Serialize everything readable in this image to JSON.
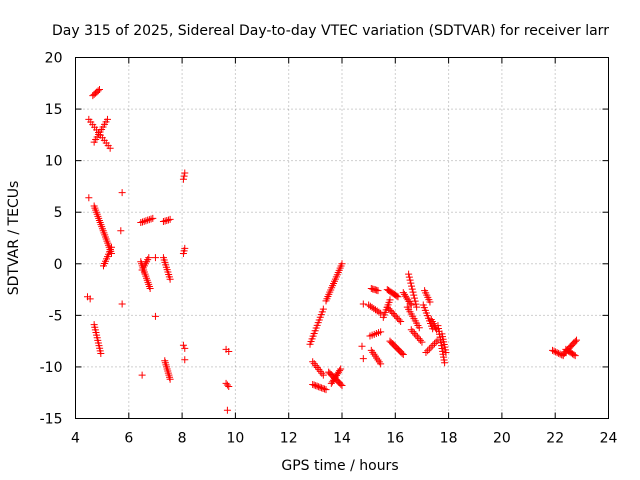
{
  "chart_data": {
    "type": "scatter",
    "title": "Day 315 of 2025, Sidereal Day-to-day VTEC variation (SDTVAR) for receiver larr",
    "xlabel": "GPS time / hours",
    "ylabel": "SDTVAR / TECUs",
    "xlim": [
      4,
      24
    ],
    "ylim": [
      -15,
      20
    ],
    "xticks": [
      4,
      6,
      8,
      10,
      12,
      14,
      16,
      18,
      20,
      22,
      24
    ],
    "yticks": [
      -15,
      -10,
      -5,
      0,
      5,
      10,
      15,
      20
    ],
    "grid": true,
    "marker": "+",
    "color": "#ff0000",
    "segments": [
      {
        "x0": 4.65,
        "y0": 16.3,
        "x1": 4.9,
        "y1": 16.9,
        "n": 6
      },
      {
        "x0": 4.5,
        "y0": 14.0,
        "x1": 5.3,
        "y1": 11.2,
        "n": 12
      },
      {
        "x0": 4.7,
        "y0": 11.8,
        "x1": 5.2,
        "y1": 14.0,
        "n": 10
      },
      {
        "x0": 4.5,
        "y0": 6.4,
        "x1": 4.5,
        "y1": 6.4,
        "n": 1
      },
      {
        "x0": 4.7,
        "y0": 5.6,
        "x1": 5.35,
        "y1": 1.0,
        "n": 24
      },
      {
        "x0": 5.05,
        "y0": -0.2,
        "x1": 5.35,
        "y1": 1.6,
        "n": 9
      },
      {
        "x0": 4.45,
        "y0": -3.2,
        "x1": 4.55,
        "y1": -3.4,
        "n": 2
      },
      {
        "x0": 4.7,
        "y0": -5.9,
        "x1": 4.95,
        "y1": -8.7,
        "n": 12
      },
      {
        "x0": 5.75,
        "y0": 6.9,
        "x1": 5.75,
        "y1": 6.9,
        "n": 1
      },
      {
        "x0": 5.7,
        "y0": 3.2,
        "x1": 5.7,
        "y1": 3.2,
        "n": 1
      },
      {
        "x0": 5.75,
        "y0": -3.9,
        "x1": 5.75,
        "y1": -3.9,
        "n": 1
      },
      {
        "x0": 6.45,
        "y0": 4.0,
        "x1": 6.9,
        "y1": 4.4,
        "n": 8
      },
      {
        "x0": 6.45,
        "y0": 0.2,
        "x1": 6.8,
        "y1": -2.4,
        "n": 14
      },
      {
        "x0": 6.5,
        "y0": -0.6,
        "x1": 6.75,
        "y1": 0.6,
        "n": 7
      },
      {
        "x0": 6.5,
        "y0": -10.8,
        "x1": 6.5,
        "y1": -10.8,
        "n": 1
      },
      {
        "x0": 7.0,
        "y0": 0.6,
        "x1": 7.0,
        "y1": 0.6,
        "n": 1
      },
      {
        "x0": 7.0,
        "y0": -5.1,
        "x1": 7.0,
        "y1": -5.1,
        "n": 1
      },
      {
        "x0": 7.3,
        "y0": 4.1,
        "x1": 7.55,
        "y1": 4.3,
        "n": 5
      },
      {
        "x0": 7.3,
        "y0": 0.6,
        "x1": 7.55,
        "y1": -1.5,
        "n": 10
      },
      {
        "x0": 7.35,
        "y0": -9.4,
        "x1": 7.55,
        "y1": -11.2,
        "n": 10
      },
      {
        "x0": 8.05,
        "y0": 8.2,
        "x1": 8.1,
        "y1": 8.8,
        "n": 3
      },
      {
        "x0": 8.05,
        "y0": 1.0,
        "x1": 8.1,
        "y1": 1.5,
        "n": 3
      },
      {
        "x0": 8.05,
        "y0": -7.9,
        "x1": 8.1,
        "y1": -8.2,
        "n": 2
      },
      {
        "x0": 8.1,
        "y0": -9.3,
        "x1": 8.1,
        "y1": -9.3,
        "n": 1
      },
      {
        "x0": 9.65,
        "y0": -8.3,
        "x1": 9.75,
        "y1": -8.5,
        "n": 2
      },
      {
        "x0": 9.65,
        "y0": -11.6,
        "x1": 9.75,
        "y1": -11.9,
        "n": 3
      },
      {
        "x0": 9.7,
        "y0": -14.2,
        "x1": 9.7,
        "y1": -14.2,
        "n": 1
      },
      {
        "x0": 12.8,
        "y0": -7.8,
        "x1": 13.3,
        "y1": -4.4,
        "n": 14
      },
      {
        "x0": 12.9,
        "y0": -9.5,
        "x1": 13.3,
        "y1": -10.8,
        "n": 8
      },
      {
        "x0": 12.9,
        "y0": -11.7,
        "x1": 13.4,
        "y1": -12.2,
        "n": 10
      },
      {
        "x0": 13.4,
        "y0": -3.6,
        "x1": 14.0,
        "y1": 0.0,
        "n": 18
      },
      {
        "x0": 13.5,
        "y0": -10.5,
        "x1": 14.0,
        "y1": -11.8,
        "n": 12
      },
      {
        "x0": 13.6,
        "y0": -11.6,
        "x1": 13.95,
        "y1": -10.2,
        "n": 10
      },
      {
        "x0": 14.8,
        "y0": -3.9,
        "x1": 14.8,
        "y1": -3.9,
        "n": 1
      },
      {
        "x0": 14.75,
        "y0": -8.0,
        "x1": 14.75,
        "y1": -8.0,
        "n": 1
      },
      {
        "x0": 14.8,
        "y0": -9.2,
        "x1": 14.8,
        "y1": -9.2,
        "n": 1
      },
      {
        "x0": 15.1,
        "y0": -2.4,
        "x1": 15.35,
        "y1": -2.6,
        "n": 6
      },
      {
        "x0": 15.0,
        "y0": -4.0,
        "x1": 15.45,
        "y1": -4.8,
        "n": 8
      },
      {
        "x0": 15.05,
        "y0": -7.0,
        "x1": 15.45,
        "y1": -6.6,
        "n": 6
      },
      {
        "x0": 15.1,
        "y0": -8.4,
        "x1": 15.45,
        "y1": -9.7,
        "n": 8
      },
      {
        "x0": 15.55,
        "y0": -5.2,
        "x1": 15.8,
        "y1": -3.5,
        "n": 8
      },
      {
        "x0": 15.7,
        "y0": -2.5,
        "x1": 16.1,
        "y1": -3.2,
        "n": 10
      },
      {
        "x0": 15.7,
        "y0": -4.2,
        "x1": 16.2,
        "y1": -5.6,
        "n": 10
      },
      {
        "x0": 15.8,
        "y0": -7.5,
        "x1": 16.3,
        "y1": -8.8,
        "n": 12
      },
      {
        "x0": 16.3,
        "y0": -2.8,
        "x1": 16.6,
        "y1": -4.0,
        "n": 8
      },
      {
        "x0": 16.5,
        "y0": -1.0,
        "x1": 16.8,
        "y1": -4.2,
        "n": 12
      },
      {
        "x0": 16.45,
        "y0": -4.2,
        "x1": 16.9,
        "y1": -6.2,
        "n": 10
      },
      {
        "x0": 16.6,
        "y0": -6.4,
        "x1": 17.0,
        "y1": -7.6,
        "n": 8
      },
      {
        "x0": 17.1,
        "y0": -2.6,
        "x1": 17.3,
        "y1": -3.7,
        "n": 6
      },
      {
        "x0": 17.05,
        "y0": -4.0,
        "x1": 17.4,
        "y1": -6.3,
        "n": 10
      },
      {
        "x0": 17.15,
        "y0": -8.6,
        "x1": 17.6,
        "y1": -7.4,
        "n": 8
      },
      {
        "x0": 17.35,
        "y0": -5.4,
        "x1": 17.55,
        "y1": -6.4,
        "n": 6
      },
      {
        "x0": 17.6,
        "y0": -6.0,
        "x1": 17.85,
        "y1": -9.6,
        "n": 14
      },
      {
        "x0": 17.75,
        "y0": -6.8,
        "x1": 17.9,
        "y1": -8.6,
        "n": 8
      },
      {
        "x0": 21.9,
        "y0": -8.4,
        "x1": 22.3,
        "y1": -8.9,
        "n": 8
      },
      {
        "x0": 22.3,
        "y0": -8.8,
        "x1": 22.8,
        "y1": -7.4,
        "n": 12
      },
      {
        "x0": 22.4,
        "y0": -8.3,
        "x1": 22.75,
        "y1": -8.9,
        "n": 8
      }
    ]
  }
}
